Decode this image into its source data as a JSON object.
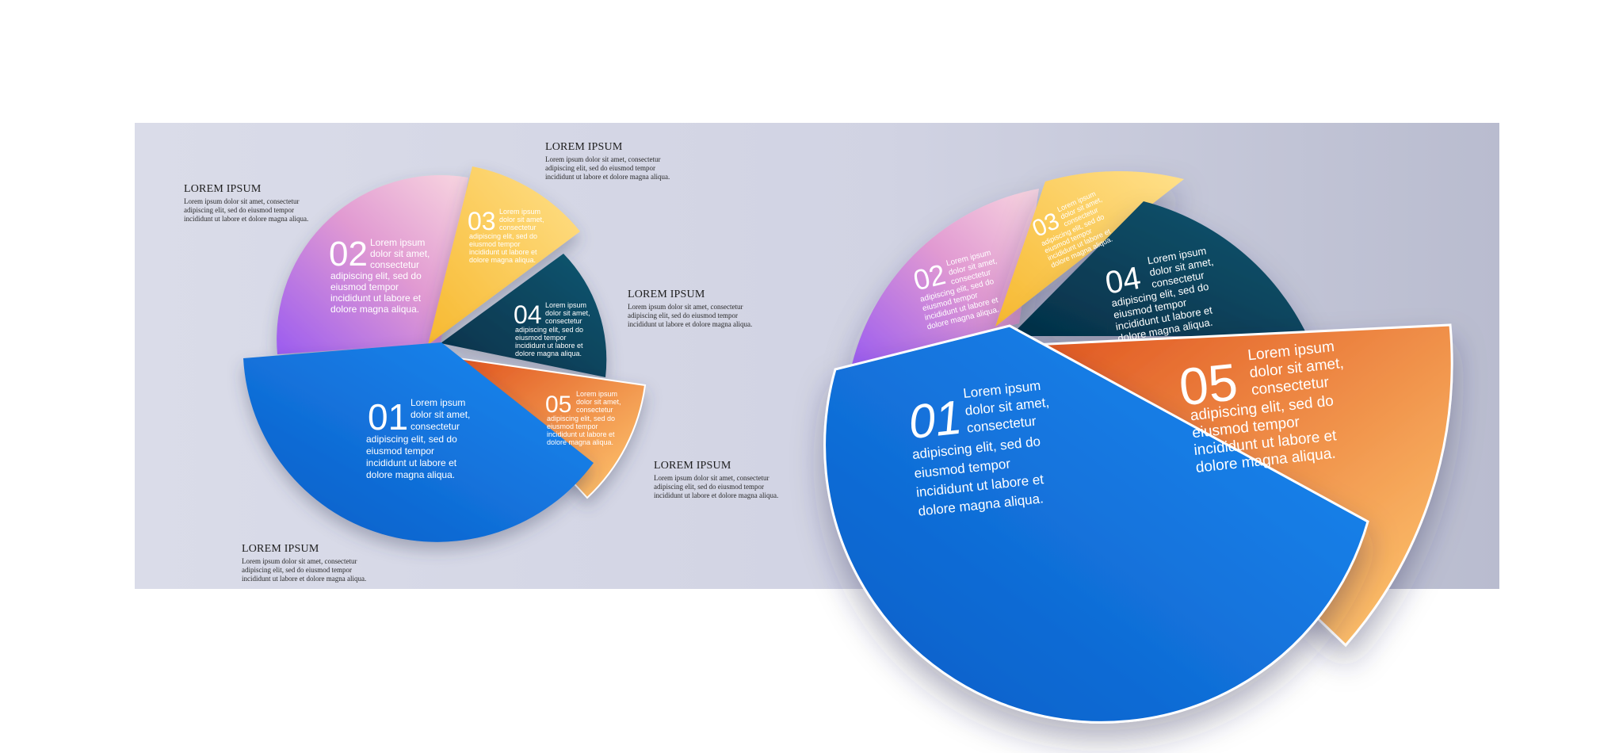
{
  "slices": [
    {
      "num": "01",
      "line1": "Lorem ipsum",
      "line2": "dolor sit amet,",
      "line3": "consectetur",
      "body": [
        "adipiscing elit, sed do",
        "eiusmod tempor",
        "incididunt ut labore et",
        "dolore magna aliqua."
      ]
    },
    {
      "num": "02",
      "line1": "Lorem ipsum",
      "line2": "dolor sit amet,",
      "line3": "consectetur",
      "body": [
        "adipiscing elit, sed do",
        "eiusmod tempor",
        "incididunt ut labore et",
        "dolore magna aliqua."
      ]
    },
    {
      "num": "03",
      "line1": "Lorem ipsum",
      "line2": "dolor sit amet,",
      "line3": "consectetur",
      "body": [
        "adipiscing elit, sed do",
        "eiusmod tempor",
        "incididunt ut labore et",
        "dolore magna aliqua."
      ]
    },
    {
      "num": "04",
      "line1": "Lorem ipsum",
      "line2": "dolor sit amet,",
      "line3": "consectetur",
      "body": [
        "adipiscing elit, sed do",
        "eiusmod tempor",
        "incididunt ut labore et",
        "dolore magna aliqua."
      ]
    },
    {
      "num": "05",
      "line1": "Lorem ipsum",
      "line2": "dolor sit amet,",
      "line3": "consectetur",
      "body": [
        "adipiscing elit, sed do",
        "eiusmod tempor",
        "incididunt ut labore et",
        "dolore magna aliqua."
      ]
    }
  ],
  "callouts": [
    {
      "title": "LOREM IPSUM",
      "body": [
        "Lorem ipsum dolor sit amet, consectetur",
        "adipiscing elit, sed do eiusmod tempor",
        "incididunt ut labore et dolore magna aliqua."
      ]
    },
    {
      "title": "LOREM IPSUM",
      "body": [
        "Lorem ipsum dolor sit amet, consectetur",
        "adipiscing elit, sed do eiusmod tempor",
        "incididunt ut labore et dolore magna aliqua."
      ]
    },
    {
      "title": "LOREM IPSUM",
      "body": [
        "Lorem ipsum dolor sit amet, consectetur",
        "adipiscing elit, sed do eiusmod tempor",
        "incididunt ut labore et dolore magna aliqua."
      ]
    },
    {
      "title": "LOREM IPSUM",
      "body": [
        "Lorem ipsum dolor sit amet, consectetur",
        "adipiscing elit, sed do eiusmod tempor",
        "incididunt ut labore et dolore magna aliqua."
      ]
    },
    {
      "title": "LOREM IPSUM",
      "body": [
        "Lorem ipsum dolor sit amet, consectetur",
        "adipiscing elit, sed do eiusmod tempor",
        "incididunt ut labore et dolore magna aliqua."
      ]
    }
  ],
  "colors": {
    "slice01": [
      "#0b5cc6",
      "#1a8af2"
    ],
    "slice02": [
      "#9b5cf0",
      "#f4c3d8"
    ],
    "slice03": [
      "#f7b930",
      "#ffe08a"
    ],
    "slice04": [
      "#052f47",
      "#0e5872"
    ],
    "slice05": [
      "#e0541f",
      "#ffcb73"
    ]
  }
}
